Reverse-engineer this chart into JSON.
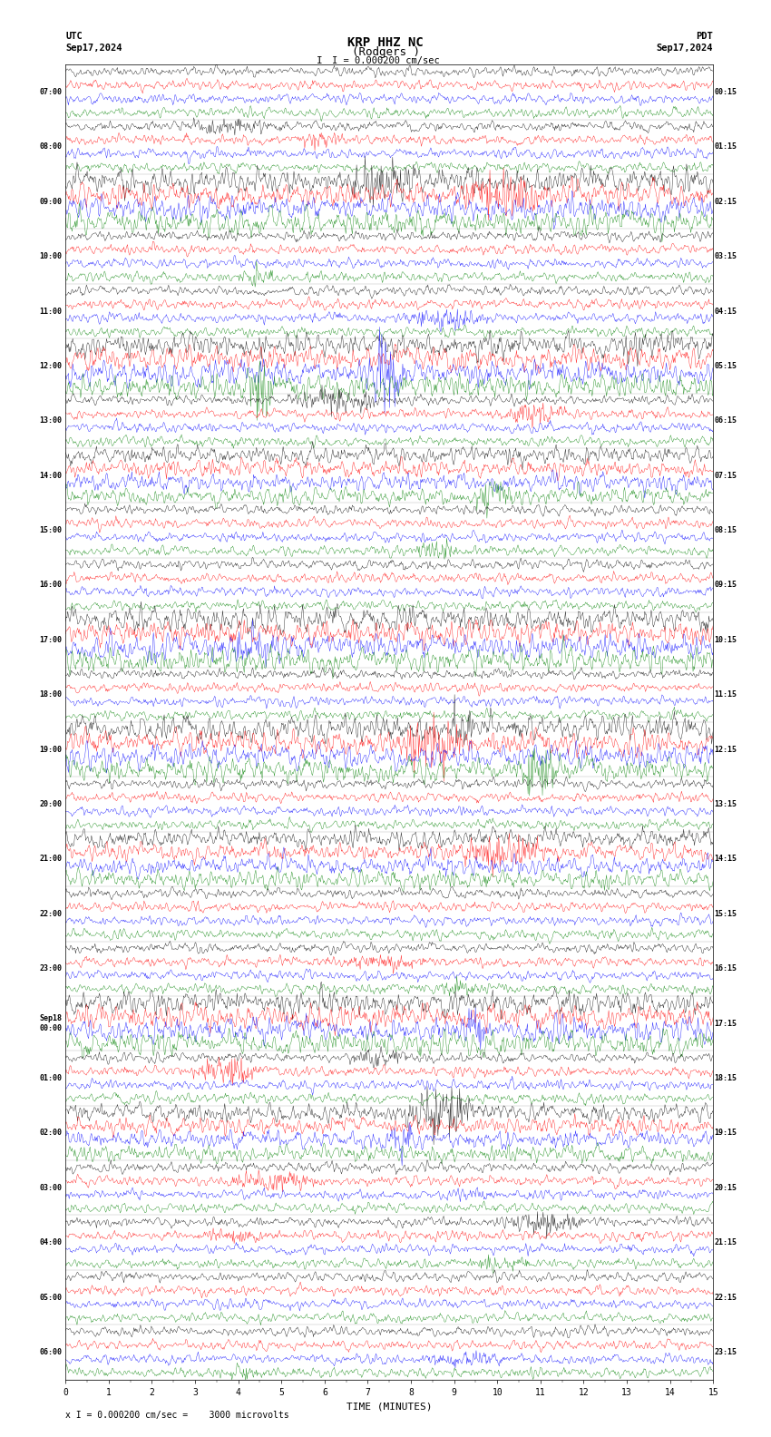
{
  "title_line1": "KRP HHZ NC",
  "title_line2": "(Rodgers )",
  "scale_label": "I = 0.000200 cm/sec",
  "left_label_top": "UTC",
  "left_label_date": "Sep17,2024",
  "right_label_top": "PDT",
  "right_label_date": "Sep17,2024",
  "bottom_label": "TIME (MINUTES)",
  "bottom_note": "x I = 0.000200 cm/sec =    3000 microvolts",
  "xlabel_ticks": [
    0,
    1,
    2,
    3,
    4,
    5,
    6,
    7,
    8,
    9,
    10,
    11,
    12,
    13,
    14,
    15
  ],
  "left_time_labels": [
    "07:00",
    "08:00",
    "09:00",
    "10:00",
    "11:00",
    "12:00",
    "13:00",
    "14:00",
    "15:00",
    "16:00",
    "17:00",
    "18:00",
    "19:00",
    "20:00",
    "21:00",
    "22:00",
    "23:00",
    "Sep18\n00:00",
    "01:00",
    "02:00",
    "03:00",
    "04:00",
    "05:00",
    "06:00"
  ],
  "right_time_labels": [
    "00:15",
    "01:15",
    "02:15",
    "03:15",
    "04:15",
    "05:15",
    "06:15",
    "07:15",
    "08:15",
    "09:15",
    "10:15",
    "11:15",
    "12:15",
    "13:15",
    "14:15",
    "15:15",
    "16:15",
    "17:15",
    "18:15",
    "19:15",
    "20:15",
    "21:15",
    "22:15",
    "23:15"
  ],
  "n_rows": 24,
  "traces_per_row": 4,
  "trace_colors": [
    "black",
    "red",
    "blue",
    "green"
  ],
  "background_color": "white",
  "fig_width": 8.5,
  "fig_height": 15.84,
  "dpi": 100,
  "minutes_per_row": 15,
  "amplitude_scale": 0.35,
  "noise_seed": 42
}
